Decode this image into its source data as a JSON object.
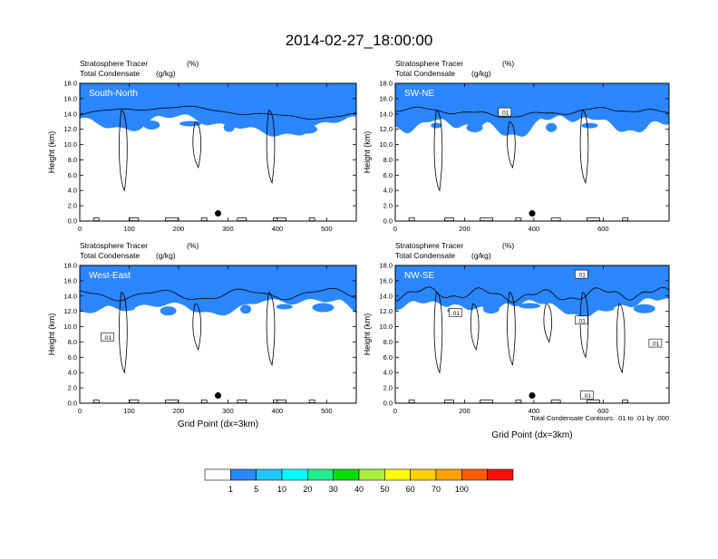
{
  "title": "2014-02-27_18:00:00",
  "footnote": "Total Condensate Contours: .01 to .01 by .000",
  "colorbar": {
    "colors": [
      "#ffffff",
      "#2b86ff",
      "#1ec8ff",
      "#00ffff",
      "#20f090",
      "#00e000",
      "#a8f03c",
      "#ffff00",
      "#ffd000",
      "#ffa000",
      "#ff5a00",
      "#ff1010"
    ],
    "labels": [
      "1",
      "5",
      "10",
      "20",
      "30",
      "40",
      "50",
      "60",
      "70",
      "100"
    ]
  },
  "chart_data": [
    {
      "type": "contour",
      "name": "South-North",
      "left_title_1": "Stratosphere Tracer",
      "left_title_2": "Total Condensate",
      "right_unit_1": "(%)",
      "right_unit_2": "(g/kg)",
      "ylabel": "Height (km)",
      "xlabel": "",
      "xlim": [
        0,
        560
      ],
      "ylim": [
        0,
        18
      ],
      "xticks": [
        "0",
        "100",
        "200",
        "300",
        "400",
        "500"
      ],
      "yticks": [
        "0.0",
        "2.0",
        "4.0",
        "6.0",
        "8.0",
        "10.0",
        "12.0",
        "14.0",
        "16.0",
        "18.0"
      ],
      "contour_labels": [],
      "marker_x": 280
    },
    {
      "type": "contour",
      "name": "SW-NE",
      "left_title_1": "Stratosphere Tracer",
      "left_title_2": "Total Condensate",
      "right_unit_1": "(%)",
      "right_unit_2": "(g/kg)",
      "ylabel": "Height (km)",
      "xlabel": "",
      "xlim": [
        0,
        790
      ],
      "ylim": [
        0,
        18
      ],
      "xticks": [
        "0",
        "200",
        "400",
        "600"
      ],
      "yticks": [
        "0.0",
        "2.0",
        "4.0",
        "6.0",
        "8.0",
        "10.0",
        "12.0",
        "14.0",
        "16.0",
        "18.0"
      ],
      "contour_labels": [
        ".01"
      ],
      "marker_x": 395
    },
    {
      "type": "contour",
      "name": "West-East",
      "left_title_1": "Stratosphere Tracer",
      "left_title_2": "Total Condensate",
      "right_unit_1": "(%)",
      "right_unit_2": "(g/kg)",
      "ylabel": "Height (km)",
      "xlabel": "Grid Point (dx=3km)",
      "xlim": [
        0,
        560
      ],
      "ylim": [
        0,
        18
      ],
      "xticks": [
        "0",
        "100",
        "200",
        "300",
        "400",
        "500"
      ],
      "yticks": [
        "0.0",
        "2.0",
        "4.0",
        "6.0",
        "8.0",
        "10.0",
        "12.0",
        "14.0",
        "16.0",
        "18.0"
      ],
      "contour_labels": [
        ".01"
      ],
      "marker_x": 280
    },
    {
      "type": "contour",
      "name": "NW-SE",
      "left_title_1": "Stratosphere Tracer",
      "left_title_2": "Total Condensate",
      "right_unit_1": "(%)",
      "right_unit_2": "(g/kg)",
      "ylabel": "Height (km)",
      "xlabel": "Grid Point (dx=3km)",
      "xlim": [
        0,
        790
      ],
      "ylim": [
        0,
        18
      ],
      "xticks": [
        "0",
        "200",
        "400",
        "600"
      ],
      "yticks": [
        "0.0",
        "2.0",
        "4.0",
        "6.0",
        "8.0",
        "10.0",
        "12.0",
        "14.0",
        "16.0",
        "18.0"
      ],
      "contour_labels": [
        ".01",
        ".01",
        ".01",
        ".01",
        ".01"
      ],
      "marker_x": 395
    }
  ]
}
